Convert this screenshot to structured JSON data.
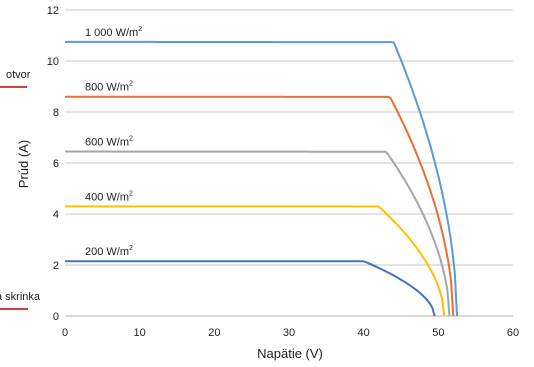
{
  "chart_data": {
    "type": "line",
    "xlabel": "Napätie (V)",
    "ylabel": "Prúd (A)",
    "xlim": [
      0,
      60
    ],
    "ylim": [
      0,
      12
    ],
    "x_ticks": [
      "0",
      "10",
      "20",
      "30",
      "40",
      "50",
      "60"
    ],
    "y_ticks": [
      "0",
      "2",
      "4",
      "6",
      "8",
      "10",
      "12"
    ],
    "grid": "horizontal",
    "series": [
      {
        "name": "1 000 W/m",
        "sup": "2",
        "color": "#5b9bd5",
        "isc": 10.75,
        "voc": 52.5,
        "knee": 44.0
      },
      {
        "name": "800 W/m",
        "sup": "2",
        "color": "#e87030",
        "isc": 8.6,
        "voc": 52.0,
        "knee": 43.5
      },
      {
        "name": "600 W/m",
        "sup": "2",
        "color": "#a5a5a5",
        "isc": 6.45,
        "voc": 51.5,
        "knee": 43.0
      },
      {
        "name": "400 W/m",
        "sup": "2",
        "color": "#ffc000",
        "isc": 4.3,
        "voc": 50.8,
        "knee": 42.0
      },
      {
        "name": "200 W/m",
        "sup": "2",
        "color": "#4472c4",
        "isc": 2.15,
        "voc": 49.5,
        "knee": 40.0
      }
    ],
    "side_annotations": [
      {
        "text": "otvor",
        "color": "#c00000"
      },
      {
        "text": "a skrinka",
        "color": "#c00000"
      }
    ]
  }
}
